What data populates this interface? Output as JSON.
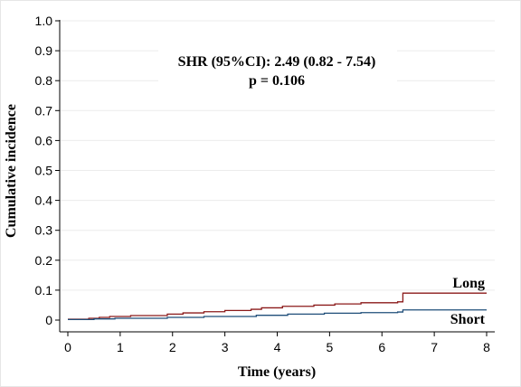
{
  "chart_data": {
    "type": "line",
    "xlabel": "Time (years)",
    "ylabel": "Cumulative incidence",
    "xlim": [
      0,
      8
    ],
    "ylim": [
      0,
      1
    ],
    "x_ticks": [
      "0",
      "1",
      "2",
      "3",
      "4",
      "5",
      "6",
      "7",
      "8"
    ],
    "y_ticks": [
      "0",
      "0.1",
      "0.2",
      "0.3",
      "0.4",
      "0.5",
      "0.6",
      "0.7",
      "0.8",
      "0.9",
      "1.0"
    ],
    "grid": true,
    "annotation_line1": "SHR (95%CI): 2.49 (0.82 - 7.54)",
    "annotation_line2": "p = 0.106",
    "series": [
      {
        "name": "Long",
        "color": "#8b1a1a",
        "x": [
          0,
          0.4,
          0.6,
          0.8,
          1.2,
          1.9,
          2.2,
          2.6,
          3.0,
          3.5,
          3.7,
          4.1,
          4.7,
          5.1,
          5.6,
          6.3,
          6.4,
          8
        ],
        "y": [
          0.003,
          0.006,
          0.009,
          0.012,
          0.015,
          0.02,
          0.024,
          0.028,
          0.032,
          0.036,
          0.041,
          0.046,
          0.05,
          0.054,
          0.058,
          0.061,
          0.09,
          0.09
        ]
      },
      {
        "name": "Short",
        "color": "#1f4e79",
        "x": [
          0,
          0.5,
          0.9,
          1.9,
          2.6,
          3.6,
          4.2,
          4.9,
          5.6,
          6.3,
          6.4,
          8
        ],
        "y": [
          0.002,
          0.004,
          0.006,
          0.009,
          0.012,
          0.016,
          0.02,
          0.023,
          0.025,
          0.027,
          0.034,
          0.034
        ]
      }
    ]
  }
}
